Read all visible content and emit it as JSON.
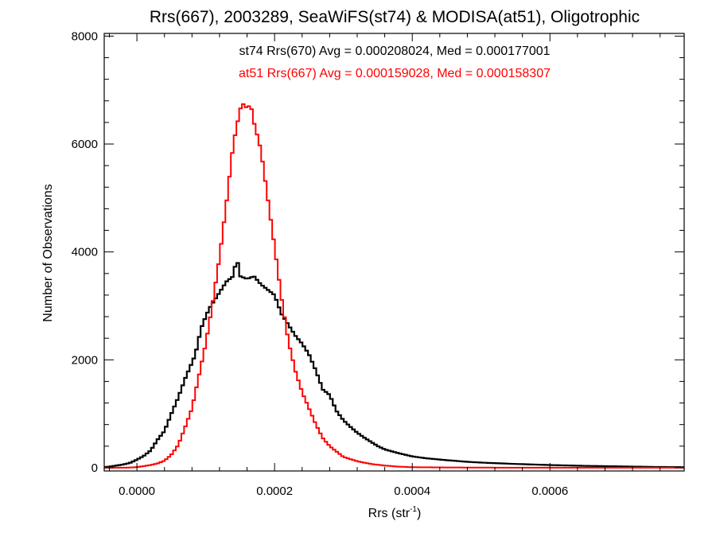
{
  "chart_data": {
    "type": "line",
    "title": "Rrs(667), 2003289, SeaWiFS(st74) & MODISA(at51), Oligotrophic",
    "xlabel_main": "Rrs (str",
    "xlabel_sup": "-1",
    "xlabel_close": ")",
    "ylabel": "Number of Observations",
    "xlim": [
      -4.75e-05,
      0.000795
    ],
    "ylim": [
      -60,
      8050
    ],
    "xticks": [
      0.0,
      0.0002,
      0.0004,
      0.0006
    ],
    "xtick_labels": [
      "0.0000",
      "0.0002",
      "0.0004",
      "0.0006"
    ],
    "yticks": [
      0,
      2000,
      4000,
      6000,
      8000
    ],
    "ytick_labels": [
      "0",
      "2000",
      "4000",
      "6000",
      "8000"
    ],
    "annotations": [
      {
        "text": "st74 Rrs(670) Avg = 0.000208024, Med = 0.000177001",
        "color": "#000000"
      },
      {
        "text": "at51 Rrs(667) Avg = 0.000159028, Med = 0.000158307",
        "color": "#ff0000"
      }
    ],
    "series": [
      {
        "color": "#000000",
        "style": "step",
        "points": [
          [
            -5e-05,
            10
          ],
          [
            -4e-05,
            20
          ],
          [
            -3e-05,
            40
          ],
          [
            -2e-05,
            60
          ],
          [
            -1e-05,
            90
          ],
          [
            0.0,
            150
          ],
          [
            1e-05,
            220
          ],
          [
            2e-05,
            320
          ],
          [
            3e-05,
            520
          ],
          [
            4e-05,
            680
          ],
          [
            5e-05,
            1000
          ],
          [
            6e-05,
            1300
          ],
          [
            7e-05,
            1650
          ],
          [
            8e-05,
            1950
          ],
          [
            8.5e-05,
            2100
          ],
          [
            9e-05,
            2400
          ],
          [
            9.5e-05,
            2650
          ],
          [
            0.0001,
            2800
          ],
          [
            0.000105,
            2950
          ],
          [
            0.00011,
            3050
          ],
          [
            0.00012,
            3250
          ],
          [
            0.00013,
            3450
          ],
          [
            0.00014,
            3550
          ],
          [
            0.000145,
            3900
          ],
          [
            0.00015,
            3550
          ],
          [
            0.00016,
            3500
          ],
          [
            0.00017,
            3550
          ],
          [
            0.00018,
            3400
          ],
          [
            0.00019,
            3300
          ],
          [
            0.0002,
            3200
          ],
          [
            0.00021,
            2850
          ],
          [
            0.00022,
            2650
          ],
          [
            0.00023,
            2450
          ],
          [
            0.00024,
            2300
          ],
          [
            0.00025,
            2100
          ],
          [
            0.00026,
            1800
          ],
          [
            0.00027,
            1450
          ],
          [
            0.00028,
            1350
          ],
          [
            0.00029,
            1050
          ],
          [
            0.0003,
            880
          ],
          [
            0.00031,
            760
          ],
          [
            0.00032,
            650
          ],
          [
            0.00033,
            560
          ],
          [
            0.00034,
            480
          ],
          [
            0.00035,
            400
          ],
          [
            0.00036,
            340
          ],
          [
            0.00038,
            270
          ],
          [
            0.0004,
            210
          ],
          [
            0.00042,
            175
          ],
          [
            0.00045,
            140
          ],
          [
            0.00048,
            110
          ],
          [
            0.0005,
            95
          ],
          [
            0.00055,
            70
          ],
          [
            0.0006,
            50
          ],
          [
            0.00065,
            35
          ],
          [
            0.0007,
            25
          ],
          [
            0.00075,
            15
          ],
          [
            0.0008,
            10
          ]
        ]
      },
      {
        "color": "#ff0000",
        "style": "step",
        "points": [
          [
            -5e-05,
            0
          ],
          [
            -2e-05,
            0
          ],
          [
            0.0,
            10
          ],
          [
            1e-05,
            30
          ],
          [
            2e-05,
            50
          ],
          [
            3e-05,
            80
          ],
          [
            4e-05,
            130
          ],
          [
            5e-05,
            240
          ],
          [
            6e-05,
            420
          ],
          [
            7e-05,
            750
          ],
          [
            8e-05,
            1100
          ],
          [
            9e-05,
            1700
          ],
          [
            0.0001,
            2300
          ],
          [
            0.00011,
            3050
          ],
          [
            0.00012,
            3900
          ],
          [
            0.00013,
            4900
          ],
          [
            0.00014,
            6000
          ],
          [
            0.00015,
            6650
          ],
          [
            0.000155,
            6750
          ],
          [
            0.00016,
            6650
          ],
          [
            0.000165,
            6750
          ],
          [
            0.00017,
            6400
          ],
          [
            0.00018,
            5900
          ],
          [
            0.00019,
            5000
          ],
          [
            0.0002,
            4100
          ],
          [
            0.00021,
            3150
          ],
          [
            0.00022,
            2350
          ],
          [
            0.00023,
            1800
          ],
          [
            0.00024,
            1400
          ],
          [
            0.00025,
            1100
          ],
          [
            0.00026,
            800
          ],
          [
            0.00027,
            550
          ],
          [
            0.00028,
            400
          ],
          [
            0.00029,
            300
          ],
          [
            0.0003,
            200
          ],
          [
            0.00032,
            120
          ],
          [
            0.00034,
            70
          ],
          [
            0.00036,
            40
          ],
          [
            0.00038,
            20
          ],
          [
            0.0004,
            10
          ],
          [
            0.00045,
            5
          ],
          [
            0.0005,
            2
          ],
          [
            0.0006,
            0
          ],
          [
            0.0008,
            0
          ]
        ]
      }
    ]
  }
}
